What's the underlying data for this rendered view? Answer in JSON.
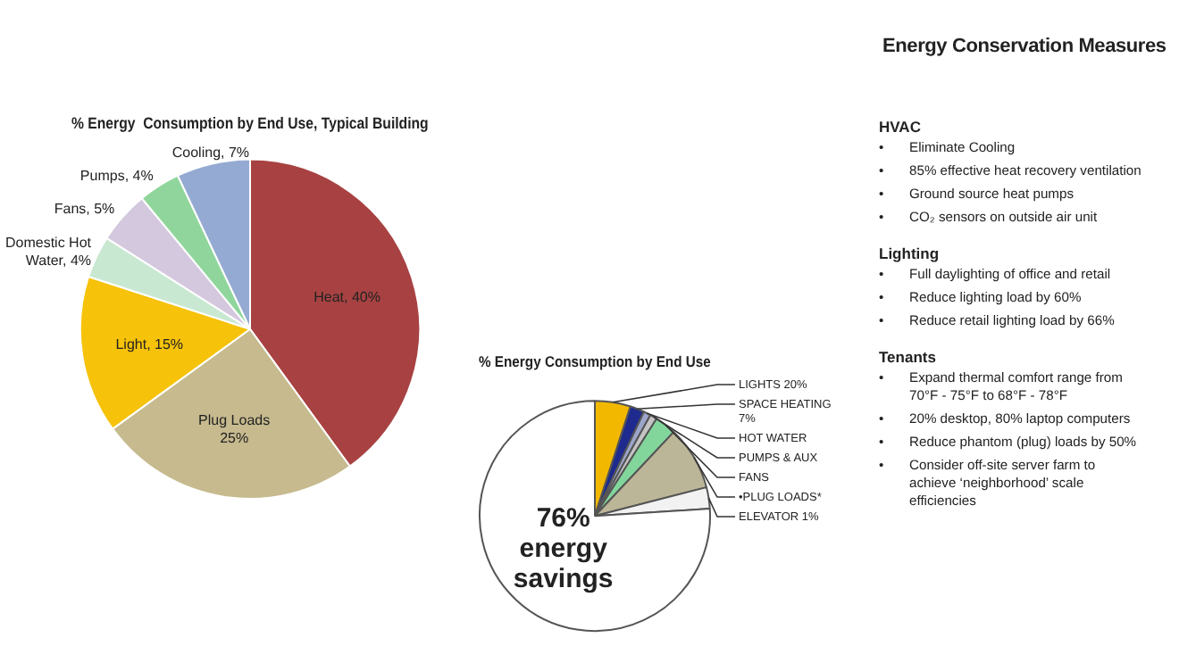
{
  "chart_data": [
    {
      "type": "pie",
      "title": "% Energy  Consumption by End Use, Typical Building",
      "categories": [
        "Heat, 40%",
        "Plug Loads 25%",
        "Light, 15%",
        "Domestic Hot Water, 4%",
        "Fans, 5%",
        "Pumps, 4%",
        "Cooling, 7%"
      ],
      "values": [
        40,
        25,
        15,
        4,
        5,
        4,
        7
      ],
      "colors": [
        "#a84242",
        "#c6ba8e",
        "#f6c20a",
        "#c8e8d2",
        "#d4c8de",
        "#90d69c",
        "#94aad2"
      ],
      "legend": false
    },
    {
      "type": "pie",
      "title": "% Energy Consumption by End Use",
      "categories": [
        "LIGHTS 20%",
        "SPACE HEATING 7%",
        "HOT WATER",
        "PUMPS & AUX",
        "FANS",
        "•PLUG LOADS*",
        "ELEVATOR 1%",
        "76% energy savings"
      ],
      "values": [
        5,
        2,
        1,
        1,
        3,
        9,
        3,
        76
      ],
      "colors": [
        "#f2b800",
        "#1e2a8e",
        "#9ca6ca",
        "#c4c4c4",
        "#82d69c",
        "#bcb698",
        "#f2f2f2",
        "#ffffff"
      ],
      "legend": false
    },
    {
      "type": "other",
      "title": "Energy Conservation Measures",
      "annotations": [
        "HVAC",
        "• Eliminate Cooling",
        "• 85% effective heat recovery ventilation",
        "• Ground source heat pumps",
        "• CO₂ sensors on outside air unit",
        "Lighting",
        "• Full daylighting of office and retail",
        "• Reduce lighting load by 60%",
        "• Reduce retail lighting load by 66%",
        "Tenants",
        "• Expand thermal comfort range from 70°F - 75°F  to 68°F - 78°F",
        "• 20% desktop, 80% laptop computers",
        "• Reduce phantom (plug) loads by 50%",
        "• Consider off-site server farm to achieve ‘neighborhood’ scale efficiencies"
      ]
    }
  ]
}
